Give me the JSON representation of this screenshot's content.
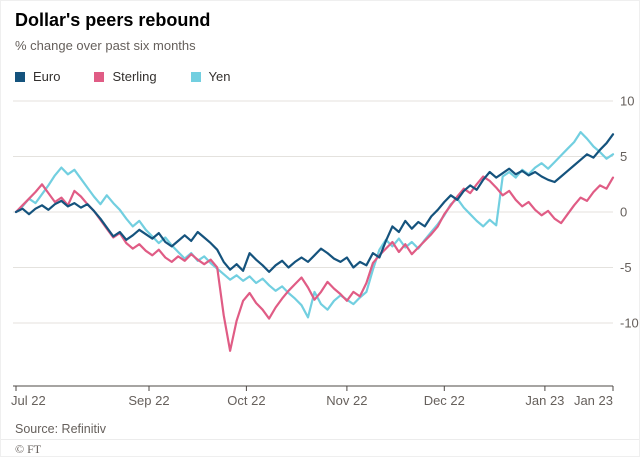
{
  "header": {
    "title": "Dollar's peers rebound",
    "subtitle": "% change over past six months"
  },
  "chart_data": {
    "type": "line",
    "title": "Dollar's peers rebound",
    "subtitle": "% change over past six months",
    "xlabel": "",
    "ylabel": "% change",
    "grid": "horizontal",
    "legend_position": "top-left",
    "ylim": [
      -13,
      10.5
    ],
    "y_ticks": [
      10,
      5,
      0,
      -5,
      -10
    ],
    "x": {
      "unit": "days",
      "range": [
        0,
        184
      ],
      "sample_step_days": 2
    },
    "x_ticks": [
      {
        "label": "Jul 22",
        "day": 0
      },
      {
        "label": "Sep 22",
        "day": 41
      },
      {
        "label": "Oct 22",
        "day": 71
      },
      {
        "label": "Nov 22",
        "day": 102
      },
      {
        "label": "Dec 22",
        "day": 132
      },
      {
        "label": "Jan 23",
        "day": 163
      },
      {
        "label": "Jan 23",
        "day": 184
      }
    ],
    "series": [
      {
        "name": "Euro",
        "color": "#15537d",
        "values": [
          0.0,
          0.3,
          -0.2,
          0.3,
          0.6,
          0.2,
          0.7,
          1.0,
          0.5,
          0.8,
          0.4,
          0.7,
          0.1,
          -0.6,
          -1.4,
          -2.2,
          -1.8,
          -2.5,
          -2.1,
          -1.6,
          -2.0,
          -2.4,
          -1.9,
          -2.7,
          -3.1,
          -2.6,
          -2.1,
          -2.6,
          -1.8,
          -2.3,
          -2.8,
          -3.4,
          -4.5,
          -5.2,
          -4.7,
          -5.3,
          -3.7,
          -4.3,
          -4.8,
          -5.4,
          -4.8,
          -4.4,
          -5.0,
          -4.5,
          -4.1,
          -4.5,
          -3.9,
          -3.3,
          -3.7,
          -4.2,
          -4.5,
          -4.1,
          -5.0,
          -4.5,
          -4.8,
          -3.7,
          -4.1,
          -2.6,
          -1.3,
          -1.8,
          -0.8,
          -1.5,
          -0.9,
          -1.3,
          -0.4,
          0.2,
          0.9,
          1.5,
          1.1,
          1.9,
          2.4,
          2.0,
          2.9,
          3.6,
          3.1,
          3.5,
          3.9,
          3.4,
          3.7,
          3.3,
          3.6,
          3.2,
          2.9,
          2.7,
          3.2,
          3.7,
          4.2,
          4.7,
          5.2,
          4.9,
          5.6,
          6.2,
          7.0
        ]
      },
      {
        "name": "Sterling",
        "color": "#e05c85",
        "values": [
          0.0,
          0.6,
          1.2,
          1.8,
          2.5,
          1.7,
          0.9,
          1.3,
          0.6,
          1.9,
          1.4,
          0.7,
          0.1,
          -0.7,
          -1.5,
          -2.3,
          -1.9,
          -2.8,
          -3.3,
          -2.9,
          -3.5,
          -3.9,
          -3.4,
          -4.1,
          -4.5,
          -4.0,
          -4.4,
          -3.8,
          -4.3,
          -4.7,
          -4.3,
          -5.0,
          -9.3,
          -12.5,
          -9.8,
          -8.0,
          -7.3,
          -8.2,
          -8.8,
          -9.6,
          -8.6,
          -7.8,
          -7.1,
          -6.5,
          -5.9,
          -6.8,
          -7.9,
          -7.2,
          -6.3,
          -6.9,
          -7.4,
          -8.0,
          -7.2,
          -7.6,
          -6.4,
          -4.6,
          -3.9,
          -3.3,
          -2.7,
          -3.6,
          -2.9,
          -3.8,
          -3.2,
          -2.6,
          -2.0,
          -1.3,
          -0.2,
          0.6,
          1.4,
          2.1,
          1.7,
          2.5,
          3.2,
          2.8,
          2.2,
          1.5,
          1.9,
          1.1,
          0.5,
          0.9,
          0.2,
          -0.3,
          0.1,
          -0.6,
          -1.0,
          -0.2,
          0.6,
          1.3,
          1.0,
          1.8,
          2.4,
          2.1,
          3.1
        ]
      },
      {
        "name": "Yen",
        "color": "#72cfe0",
        "values": [
          0.0,
          0.5,
          1.2,
          0.8,
          1.6,
          2.4,
          3.3,
          4.0,
          3.4,
          3.8,
          3.0,
          2.2,
          1.4,
          0.7,
          1.5,
          0.8,
          0.2,
          -0.6,
          -1.3,
          -0.8,
          -1.6,
          -2.2,
          -2.8,
          -2.3,
          -3.0,
          -3.6,
          -4.2,
          -3.7,
          -4.4,
          -4.0,
          -4.6,
          -5.1,
          -5.6,
          -6.1,
          -5.7,
          -6.2,
          -5.8,
          -6.4,
          -6.0,
          -6.6,
          -7.1,
          -6.7,
          -7.3,
          -7.8,
          -8.4,
          -9.5,
          -7.2,
          -8.3,
          -8.8,
          -8.0,
          -7.5,
          -7.9,
          -8.3,
          -7.7,
          -7.2,
          -5.2,
          -3.4,
          -2.5,
          -3.1,
          -2.4,
          -3.2,
          -2.7,
          -3.3,
          -2.5,
          -1.8,
          -1.1,
          -0.3,
          0.7,
          1.2,
          0.4,
          -0.2,
          -0.8,
          -1.3,
          -0.7,
          -1.2,
          3.2,
          3.6,
          3.1,
          3.8,
          3.4,
          4.0,
          4.4,
          3.9,
          4.5,
          5.1,
          5.7,
          6.3,
          7.2,
          6.6,
          5.9,
          5.4,
          4.8,
          5.2
        ]
      }
    ]
  },
  "footer": {
    "source": "Source: Refinitiv",
    "copyright": "© FT"
  }
}
